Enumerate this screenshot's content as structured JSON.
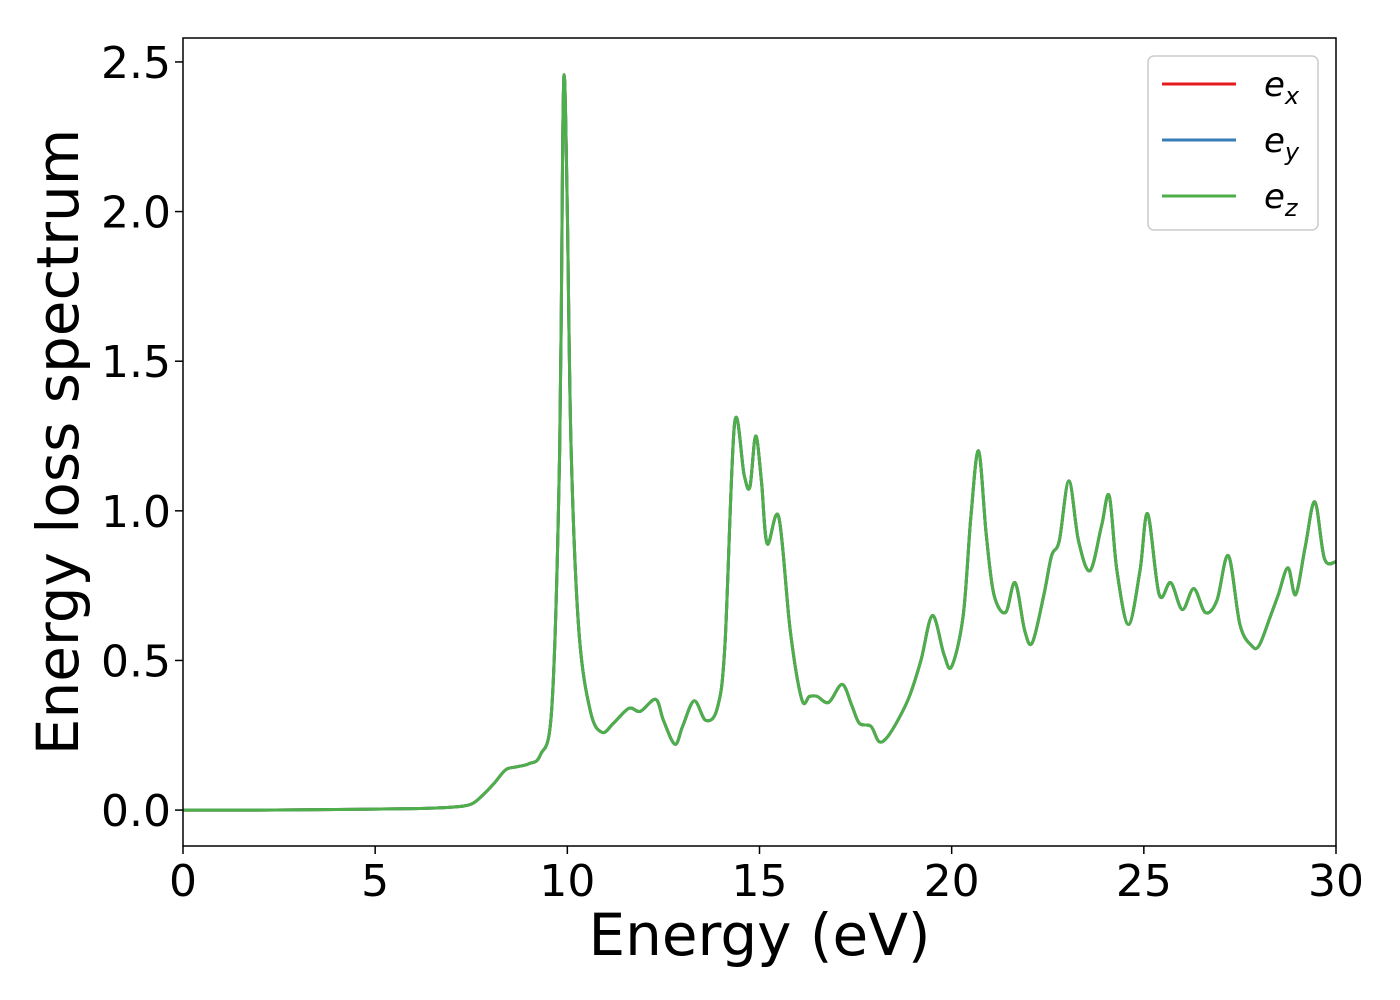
{
  "chart_data": {
    "type": "line",
    "title": "",
    "xlabel": "Energy (eV)",
    "ylabel": "Energy loss spectrum",
    "xlim": [
      0,
      30
    ],
    "ylim": [
      -0.12,
      2.58
    ],
    "xticks": [
      0,
      5,
      10,
      15,
      20,
      25,
      30
    ],
    "xtick_labels": [
      "0",
      "5",
      "10",
      "15",
      "20",
      "25",
      "30"
    ],
    "yticks": [
      0.0,
      0.5,
      1.0,
      1.5,
      2.0,
      2.5
    ],
    "ytick_labels": [
      "0.0",
      "0.5",
      "1.0",
      "1.5",
      "2.0",
      "2.5"
    ],
    "grid": false,
    "legend_position": "top-right",
    "x": [
      0,
      2,
      4,
      6,
      7,
      7.5,
      7.8,
      8.1,
      8.4,
      8.7,
      9.0,
      9.3,
      9.6,
      9.8,
      9.88,
      9.93,
      10.0,
      10.1,
      10.3,
      10.6,
      10.9,
      11.2,
      11.6,
      11.9,
      12.3,
      12.5,
      12.8,
      13.0,
      13.3,
      13.6,
      13.9,
      14.1,
      14.35,
      14.6,
      14.75,
      14.9,
      15.05,
      15.2,
      15.5,
      15.8,
      16.1,
      16.3,
      16.5,
      16.8,
      17.15,
      17.4,
      17.6,
      17.9,
      18.1,
      18.3,
      18.6,
      18.9,
      19.2,
      19.5,
      19.8,
      20.0,
      20.3,
      20.5,
      20.7,
      20.9,
      21.1,
      21.4,
      21.65,
      21.9,
      22.1,
      22.4,
      22.6,
      22.8,
      23.05,
      23.3,
      23.6,
      23.9,
      24.1,
      24.3,
      24.6,
      24.9,
      25.1,
      25.4,
      25.7,
      26.0,
      26.3,
      26.6,
      26.9,
      27.2,
      27.5,
      27.8,
      28.0,
      28.3,
      28.5,
      28.75,
      28.95,
      29.2,
      29.45,
      29.7,
      30.0
    ],
    "series": [
      {
        "name": "e",
        "subscript": "x",
        "color": "#e41a1c",
        "values": [
          0.0,
          0.0,
          0.002,
          0.005,
          0.01,
          0.02,
          0.05,
          0.09,
          0.135,
          0.145,
          0.155,
          0.185,
          0.35,
          1.2,
          2.25,
          2.44,
          2.0,
          1.2,
          0.6,
          0.33,
          0.26,
          0.29,
          0.34,
          0.33,
          0.37,
          0.3,
          0.22,
          0.28,
          0.365,
          0.3,
          0.34,
          0.55,
          1.29,
          1.12,
          1.08,
          1.25,
          1.1,
          0.89,
          0.98,
          0.6,
          0.37,
          0.38,
          0.38,
          0.36,
          0.42,
          0.35,
          0.29,
          0.28,
          0.23,
          0.24,
          0.3,
          0.38,
          0.5,
          0.65,
          0.52,
          0.48,
          0.65,
          0.98,
          1.2,
          0.92,
          0.72,
          0.66,
          0.76,
          0.6,
          0.56,
          0.72,
          0.85,
          0.9,
          1.1,
          0.9,
          0.8,
          0.95,
          1.05,
          0.8,
          0.62,
          0.8,
          0.99,
          0.72,
          0.76,
          0.67,
          0.74,
          0.66,
          0.7,
          0.85,
          0.62,
          0.55,
          0.55,
          0.65,
          0.72,
          0.81,
          0.72,
          0.88,
          1.03,
          0.84,
          0.83
        ]
      },
      {
        "name": "e",
        "subscript": "y",
        "color": "#377eb8",
        "values": [
          0.0,
          0.0,
          0.002,
          0.005,
          0.01,
          0.02,
          0.05,
          0.09,
          0.135,
          0.145,
          0.155,
          0.185,
          0.35,
          1.2,
          2.25,
          2.44,
          2.0,
          1.2,
          0.6,
          0.33,
          0.26,
          0.29,
          0.34,
          0.33,
          0.37,
          0.3,
          0.22,
          0.28,
          0.365,
          0.3,
          0.34,
          0.55,
          1.29,
          1.12,
          1.08,
          1.25,
          1.1,
          0.89,
          0.98,
          0.6,
          0.37,
          0.38,
          0.38,
          0.36,
          0.42,
          0.35,
          0.29,
          0.28,
          0.23,
          0.24,
          0.3,
          0.38,
          0.5,
          0.65,
          0.52,
          0.48,
          0.65,
          0.98,
          1.2,
          0.92,
          0.72,
          0.66,
          0.76,
          0.6,
          0.56,
          0.72,
          0.85,
          0.9,
          1.1,
          0.9,
          0.8,
          0.95,
          1.05,
          0.8,
          0.62,
          0.8,
          0.99,
          0.72,
          0.76,
          0.67,
          0.74,
          0.66,
          0.7,
          0.85,
          0.62,
          0.55,
          0.55,
          0.65,
          0.72,
          0.81,
          0.72,
          0.88,
          1.03,
          0.84,
          0.83
        ]
      },
      {
        "name": "e",
        "subscript": "z",
        "color": "#4daf4a",
        "values": [
          0.0,
          0.0,
          0.002,
          0.005,
          0.01,
          0.02,
          0.05,
          0.09,
          0.135,
          0.145,
          0.155,
          0.185,
          0.35,
          1.2,
          2.25,
          2.44,
          2.0,
          1.2,
          0.6,
          0.33,
          0.26,
          0.29,
          0.34,
          0.33,
          0.37,
          0.3,
          0.22,
          0.28,
          0.365,
          0.3,
          0.34,
          0.55,
          1.29,
          1.12,
          1.08,
          1.25,
          1.1,
          0.89,
          0.98,
          0.6,
          0.37,
          0.38,
          0.38,
          0.36,
          0.42,
          0.35,
          0.29,
          0.28,
          0.23,
          0.24,
          0.3,
          0.38,
          0.5,
          0.65,
          0.52,
          0.48,
          0.65,
          0.98,
          1.2,
          0.92,
          0.72,
          0.66,
          0.76,
          0.6,
          0.56,
          0.72,
          0.85,
          0.9,
          1.1,
          0.9,
          0.8,
          0.95,
          1.05,
          0.8,
          0.62,
          0.8,
          0.99,
          0.72,
          0.76,
          0.67,
          0.74,
          0.66,
          0.7,
          0.85,
          0.62,
          0.55,
          0.55,
          0.65,
          0.72,
          0.81,
          0.72,
          0.88,
          1.03,
          0.84,
          0.83
        ]
      }
    ]
  }
}
